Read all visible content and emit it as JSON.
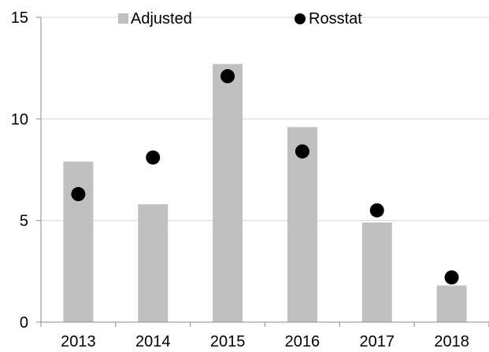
{
  "chart_data": {
    "type": "bar",
    "categories": [
      "2013",
      "2014",
      "2015",
      "2016",
      "2017",
      "2018"
    ],
    "series": [
      {
        "name": "Adjusted",
        "kind": "bar",
        "values": [
          7.9,
          5.8,
          12.7,
          9.6,
          4.9,
          1.8
        ]
      },
      {
        "name": "Rosstat",
        "kind": "scatter",
        "values": [
          6.3,
          8.1,
          12.1,
          8.4,
          5.5,
          2.2
        ]
      }
    ],
    "y_ticks": [
      "0",
      "5",
      "10",
      "15"
    ],
    "ylim": [
      0,
      15
    ],
    "grid": true,
    "legend_position": "top",
    "colors": {
      "bar": "#c0c0c0",
      "marker": "#000000",
      "grid": "#d9d9d9",
      "axis": "#8c8c8c"
    }
  }
}
